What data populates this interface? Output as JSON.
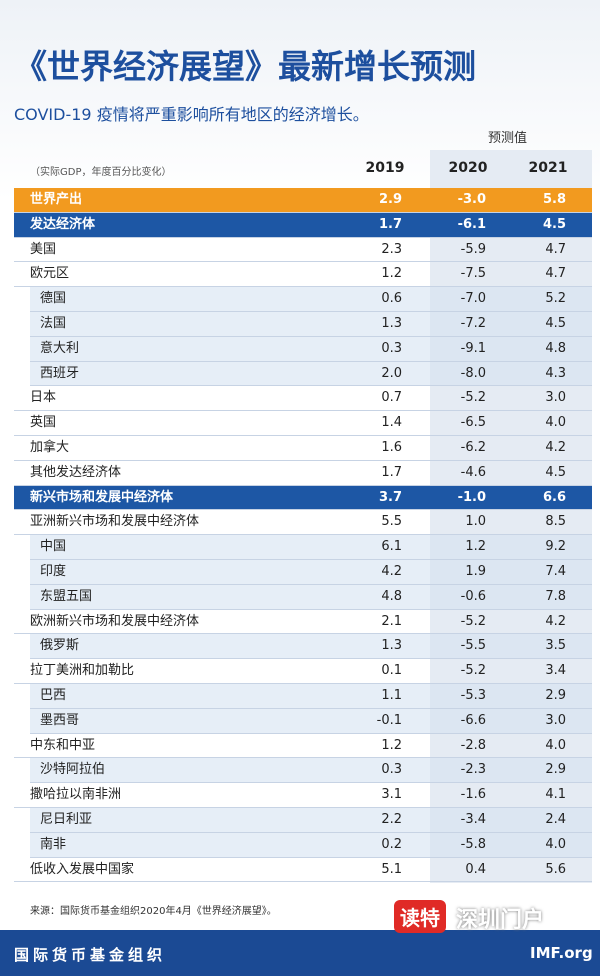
{
  "header": {
    "title": "《世界经济展望》最新增长预测",
    "subtitle": "COVID-19 疫情将严重影响所有地区的经济增长。"
  },
  "table": {
    "note": "（实际GDP，年度百分比变化）",
    "forecast_label": "预测值",
    "columns": [
      "2019",
      "2020",
      "2021"
    ],
    "sections": [
      {
        "label": "世界产出",
        "values": [
          "2.9",
          "-3.0",
          "5.8"
        ]
      },
      {
        "label": "发达经济体",
        "values": [
          "1.7",
          "-6.1",
          "4.5"
        ],
        "rows": [
          {
            "label": "美国",
            "values": [
              "2.3",
              "-5.9",
              "4.7"
            ]
          },
          {
            "label": "欧元区",
            "values": [
              "1.2",
              "-7.5",
              "4.7"
            ],
            "children": [
              {
                "label": "德国",
                "values": [
                  "0.6",
                  "-7.0",
                  "5.2"
                ]
              },
              {
                "label": "法国",
                "values": [
                  "1.3",
                  "-7.2",
                  "4.5"
                ]
              },
              {
                "label": "意大利",
                "values": [
                  "0.3",
                  "-9.1",
                  "4.8"
                ]
              },
              {
                "label": "西班牙",
                "values": [
                  "2.0",
                  "-8.0",
                  "4.3"
                ]
              }
            ]
          },
          {
            "label": "日本",
            "values": [
              "0.7",
              "-5.2",
              "3.0"
            ]
          },
          {
            "label": "英国",
            "values": [
              "1.4",
              "-6.5",
              "4.0"
            ]
          },
          {
            "label": "加拿大",
            "values": [
              "1.6",
              "-6.2",
              "4.2"
            ]
          },
          {
            "label": "其他发达经济体",
            "values": [
              "1.7",
              "-4.6",
              "4.5"
            ]
          }
        ]
      },
      {
        "label": "新兴市场和发展中经济体",
        "values": [
          "3.7",
          "-1.0",
          "6.6"
        ],
        "rows": [
          {
            "label": "亚洲新兴市场和发展中经济体",
            "values": [
              "5.5",
              "1.0",
              "8.5"
            ],
            "children": [
              {
                "label": "中国",
                "values": [
                  "6.1",
                  "1.2",
                  "9.2"
                ]
              },
              {
                "label": "印度",
                "values": [
                  "4.2",
                  "1.9",
                  "7.4"
                ]
              },
              {
                "label": "东盟五国",
                "values": [
                  "4.8",
                  "-0.6",
                  "7.8"
                ]
              }
            ]
          },
          {
            "label": "欧洲新兴市场和发展中经济体",
            "values": [
              "2.1",
              "-5.2",
              "4.2"
            ],
            "children": [
              {
                "label": "俄罗斯",
                "values": [
                  "1.3",
                  "-5.5",
                  "3.5"
                ]
              }
            ]
          },
          {
            "label": "拉丁美洲和加勒比",
            "values": [
              "0.1",
              "-5.2",
              "3.4"
            ],
            "children": [
              {
                "label": "巴西",
                "values": [
                  "1.1",
                  "-5.3",
                  "2.9"
                ]
              },
              {
                "label": "墨西哥",
                "values": [
                  "-0.1",
                  "-6.6",
                  "3.0"
                ]
              }
            ]
          },
          {
            "label": "中东和中亚",
            "values": [
              "1.2",
              "-2.8",
              "4.0"
            ],
            "children": [
              {
                "label": "沙特阿拉伯",
                "values": [
                  "0.3",
                  "-2.3",
                  "2.9"
                ]
              }
            ]
          },
          {
            "label": "撒哈拉以南非洲",
            "values": [
              "3.1",
              "-1.6",
              "4.1"
            ],
            "children": [
              {
                "label": "尼日利亚",
                "values": [
                  "2.2",
                  "-3.4",
                  "2.4"
                ]
              },
              {
                "label": "南非",
                "values": [
                  "0.2",
                  "-5.8",
                  "4.0"
                ]
              }
            ]
          },
          {
            "label": "低收入发展中国家",
            "values": [
              "5.1",
              "0.4",
              "5.6"
            ]
          }
        ]
      }
    ]
  },
  "source": "来源：国际货币基金组织2020年4月《世界经济展望》。",
  "footer": {
    "org": "国际货币基金组织",
    "site": "IMF.org"
  },
  "watermark": {
    "brand": "读特",
    "portal": "深圳门户"
  }
}
